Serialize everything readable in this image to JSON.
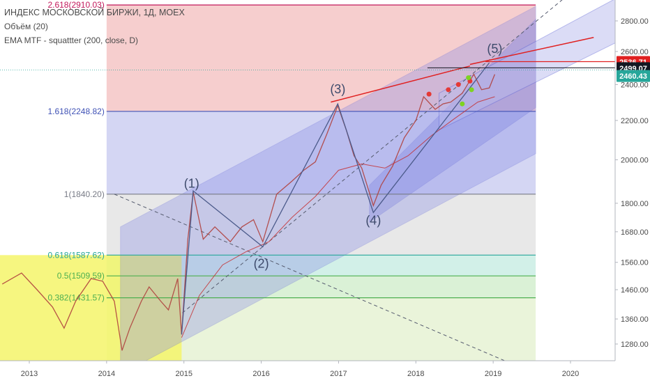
{
  "legend": {
    "title": "ИНДЕКС МОСКОВСКОЙ БИРЖИ, 1Д, MOEX",
    "volume": "Объём (20)",
    "ema": "EMA MTF - squattter (200, close, D)"
  },
  "chart_data": {
    "type": "line",
    "x_axis": {
      "ticks": [
        "2013",
        "2014",
        "2015",
        "2016",
        "2017",
        "2018",
        "2019",
        "2020"
      ]
    },
    "y_axis": {
      "scale": "log",
      "ylim": [
        1200,
        2900
      ],
      "ticks": [
        "2800.00",
        "2600.00",
        "2400.00",
        "2200.00",
        "2000.00",
        "1800.00",
        "1680.00",
        "1560.00",
        "1460.00",
        "1360.00",
        "1280.00"
      ]
    },
    "price_labels": [
      {
        "text": "2536.71",
        "color": "#e02020"
      },
      {
        "text": "2499.07",
        "color": "#131722"
      },
      {
        "text": "2460.43",
        "color": "#26a69a"
      }
    ],
    "fib_levels": [
      {
        "label": "2.618(2910.03)",
        "value": 2910.03,
        "color": "#c2185b"
      },
      {
        "label": "1.618(2248.82)",
        "value": 2248.82,
        "color": "#3f51b5"
      },
      {
        "label": "1(1840.20)",
        "value": 1840.2,
        "color": "#787b86"
      },
      {
        "label": "0.618(1587.62)",
        "value": 1587.62,
        "color": "#26a69a"
      },
      {
        "label": "0.5(1509.59)",
        "value": 1509.59,
        "color": "#4caf50"
      },
      {
        "label": "0.382(1431.57)",
        "value": 1431.57,
        "color": "#4caf50"
      }
    ],
    "wave_labels": [
      {
        "text": "(1)",
        "x": 2015.1,
        "y": 1870
      },
      {
        "text": "(2)",
        "x": 2016.0,
        "y": 1540
      },
      {
        "text": "(3)",
        "x": 2016.99,
        "y": 2350
      },
      {
        "text": "(4)",
        "x": 2017.45,
        "y": 1710
      },
      {
        "text": "(5)",
        "x": 2019.02,
        "y": 2590
      }
    ],
    "wave_path": [
      {
        "x": 2014.97,
        "y": 1310
      },
      {
        "x": 2015.12,
        "y": 1855
      },
      {
        "x": 2016.02,
        "y": 1620
      },
      {
        "x": 2016.99,
        "y": 2290
      },
      {
        "x": 2017.45,
        "y": 1760
      },
      {
        "x": 2018.95,
        "y": 2530
      }
    ],
    "price_series": [
      {
        "x": 2012.65,
        "y": 1480
      },
      {
        "x": 2012.9,
        "y": 1520
      },
      {
        "x": 2013.1,
        "y": 1460
      },
      {
        "x": 2013.3,
        "y": 1400
      },
      {
        "x": 2013.45,
        "y": 1330
      },
      {
        "x": 2013.6,
        "y": 1420
      },
      {
        "x": 2013.8,
        "y": 1500
      },
      {
        "x": 2013.95,
        "y": 1490
      },
      {
        "x": 2014.1,
        "y": 1420
      },
      {
        "x": 2014.2,
        "y": 1260
      },
      {
        "x": 2014.3,
        "y": 1330
      },
      {
        "x": 2014.45,
        "y": 1420
      },
      {
        "x": 2014.55,
        "y": 1470
      },
      {
        "x": 2014.7,
        "y": 1420
      },
      {
        "x": 2014.8,
        "y": 1390
      },
      {
        "x": 2014.92,
        "y": 1500
      },
      {
        "x": 2014.97,
        "y": 1310
      },
      {
        "x": 2015.05,
        "y": 1650
      },
      {
        "x": 2015.12,
        "y": 1850
      },
      {
        "x": 2015.25,
        "y": 1650
      },
      {
        "x": 2015.4,
        "y": 1700
      },
      {
        "x": 2015.6,
        "y": 1640
      },
      {
        "x": 2015.75,
        "y": 1700
      },
      {
        "x": 2015.9,
        "y": 1730
      },
      {
        "x": 2016.02,
        "y": 1640
      },
      {
        "x": 2016.2,
        "y": 1840
      },
      {
        "x": 2016.4,
        "y": 1900
      },
      {
        "x": 2016.55,
        "y": 1950
      },
      {
        "x": 2016.7,
        "y": 1990
      },
      {
        "x": 2016.85,
        "y": 2130
      },
      {
        "x": 2016.99,
        "y": 2280
      },
      {
        "x": 2017.1,
        "y": 2150
      },
      {
        "x": 2017.2,
        "y": 2020
      },
      {
        "x": 2017.3,
        "y": 1960
      },
      {
        "x": 2017.45,
        "y": 1790
      },
      {
        "x": 2017.55,
        "y": 1880
      },
      {
        "x": 2017.7,
        "y": 1970
      },
      {
        "x": 2017.85,
        "y": 2110
      },
      {
        "x": 2018.0,
        "y": 2200
      },
      {
        "x": 2018.1,
        "y": 2330
      },
      {
        "x": 2018.25,
        "y": 2260
      },
      {
        "x": 2018.35,
        "y": 2290
      },
      {
        "x": 2018.45,
        "y": 2300
      },
      {
        "x": 2018.6,
        "y": 2350
      },
      {
        "x": 2018.75,
        "y": 2460
      },
      {
        "x": 2018.85,
        "y": 2370
      },
      {
        "x": 2018.95,
        "y": 2380
      },
      {
        "x": 2019.02,
        "y": 2460
      }
    ],
    "ema_series": [
      {
        "x": 2014.97,
        "y": 1300
      },
      {
        "x": 2015.2,
        "y": 1440
      },
      {
        "x": 2015.5,
        "y": 1550
      },
      {
        "x": 2015.8,
        "y": 1600
      },
      {
        "x": 2016.1,
        "y": 1640
      },
      {
        "x": 2016.4,
        "y": 1740
      },
      {
        "x": 2016.7,
        "y": 1830
      },
      {
        "x": 2017.0,
        "y": 1950
      },
      {
        "x": 2017.3,
        "y": 1980
      },
      {
        "x": 2017.6,
        "y": 1960
      },
      {
        "x": 2017.9,
        "y": 2020
      },
      {
        "x": 2018.2,
        "y": 2120
      },
      {
        "x": 2018.5,
        "y": 2210
      },
      {
        "x": 2018.8,
        "y": 2300
      },
      {
        "x": 2019.02,
        "y": 2330
      }
    ]
  }
}
